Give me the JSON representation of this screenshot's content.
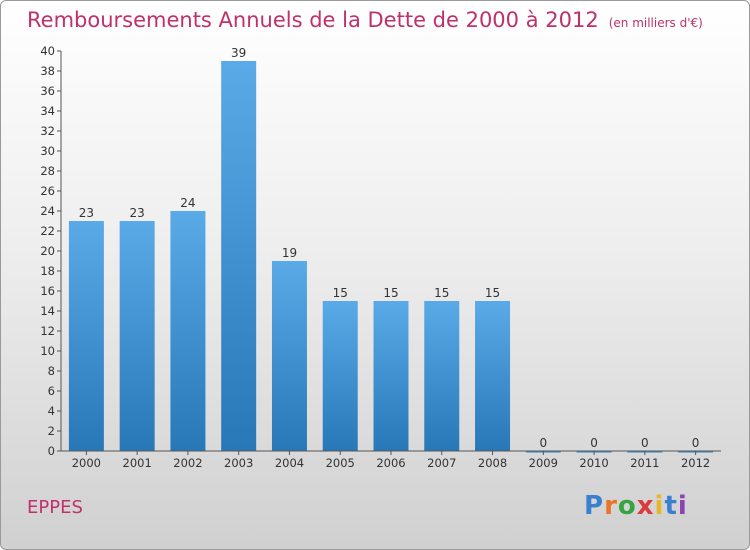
{
  "title": "Remboursements Annuels de la Dette de 2000 à 2012",
  "unit": "(en milliers d'€)",
  "commune": "EPPES",
  "logo": {
    "text": "Proxiti",
    "letter_colors": [
      "#3b7fd0",
      "#e8742a",
      "#3aa341",
      "#d93a3a",
      "#e8b62a",
      "#3b7fd0",
      "#8a44b0"
    ]
  },
  "colors": {
    "title": "#c0306a",
    "bar_top": "#5aaae8",
    "bar_bottom": "#2878b8",
    "axis": "#555555"
  },
  "chart_data": {
    "type": "bar",
    "categories": [
      "2000",
      "2001",
      "2002",
      "2003",
      "2004",
      "2005",
      "2006",
      "2007",
      "2008",
      "2009",
      "2010",
      "2011",
      "2012"
    ],
    "values": [
      23,
      23,
      24,
      39,
      19,
      15,
      15,
      15,
      15,
      0,
      0,
      0,
      0
    ],
    "ylim": [
      0,
      40
    ],
    "yticks": [
      0,
      2,
      4,
      6,
      8,
      10,
      12,
      14,
      16,
      18,
      20,
      22,
      24,
      26,
      28,
      30,
      32,
      34,
      36,
      38,
      40
    ],
    "grid": false,
    "legend": "none"
  }
}
